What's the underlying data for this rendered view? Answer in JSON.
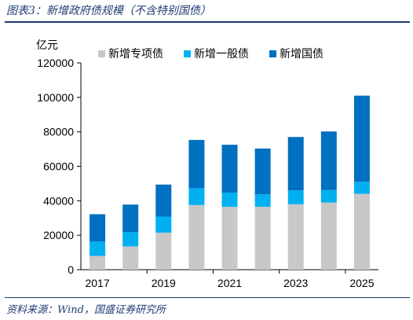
{
  "header": {
    "title": "图表3：新增政府债规模（不含特别国债）"
  },
  "footer": {
    "source": "资料来源：Wind，国盛证券研究所"
  },
  "colors": {
    "brand": "#1f3b73",
    "series": [
      "#c8c8c8",
      "#00b0f0",
      "#0070c0"
    ]
  },
  "chart_data": {
    "type": "bar",
    "stacked": true,
    "title": "",
    "xlabel": "",
    "ylabel": "亿元",
    "ylim": [
      0,
      120000
    ],
    "yticks": [
      0,
      20000,
      40000,
      60000,
      80000,
      100000,
      120000
    ],
    "categories": [
      "2017",
      "2018",
      "2019",
      "2020",
      "2021",
      "2022",
      "2023",
      "2024",
      "2025"
    ],
    "xtick_labels": [
      "2017",
      "",
      "2019",
      "",
      "2021",
      "",
      "2023",
      "",
      "2025"
    ],
    "legend_position": "top",
    "grid": false,
    "series": [
      {
        "name": "新增专项债",
        "values": [
          8000,
          13500,
          21500,
          37500,
          36500,
          36500,
          38000,
          39000,
          44000
        ]
      },
      {
        "name": "新增一般债",
        "values": [
          8300,
          8300,
          9300,
          9800,
          8200,
          7200,
          8000,
          7200,
          7000
        ]
      },
      {
        "name": "新增国债",
        "values": [
          15900,
          16000,
          18600,
          28000,
          27800,
          26600,
          31000,
          34000,
          50000
        ]
      }
    ]
  }
}
